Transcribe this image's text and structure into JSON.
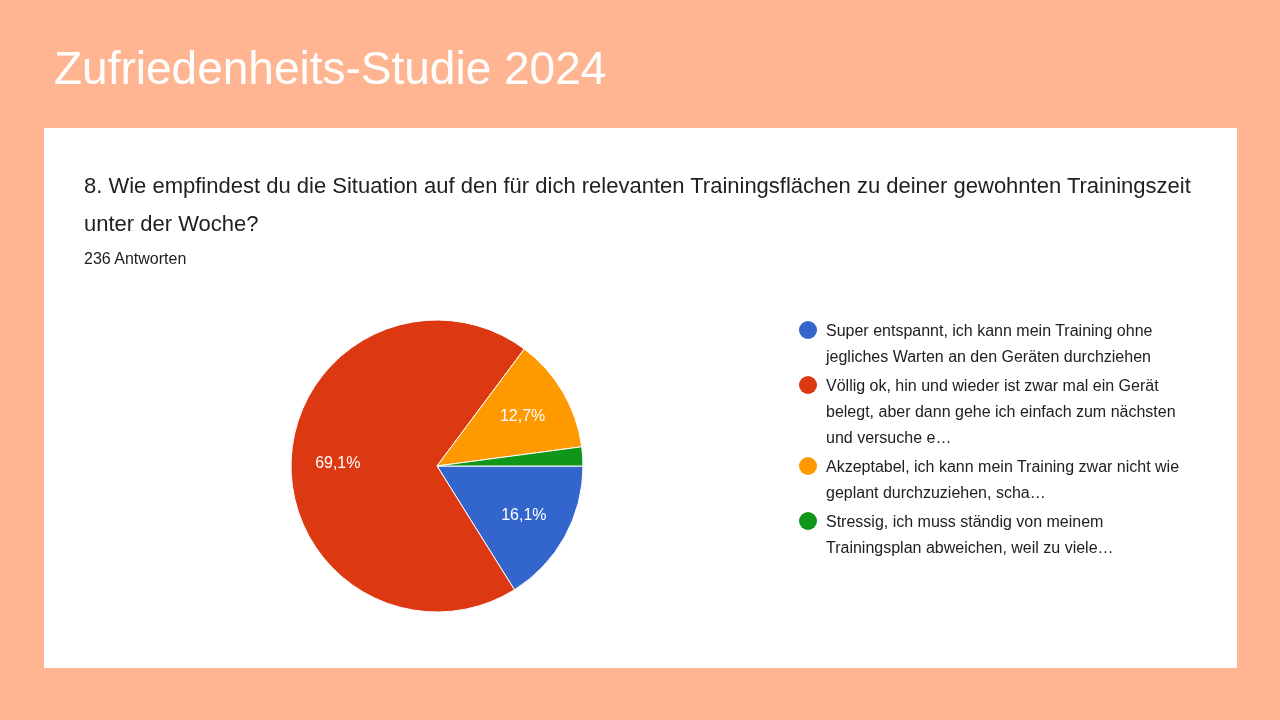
{
  "chart_data": {
    "type": "pie",
    "title": "Zufriedenheits-Studie 2024",
    "subtitle": "8. Wie empfindest du die Situation auf den für dich relevanten Trainingsflächen zu deiner gewohnten Trainingszeit unter der Woche?",
    "annotations": [
      "236 Antworten"
    ],
    "categories": [
      "Super entspannt, ich kann mein Training ohne jegliches Warten an den Geräten durchziehen",
      "Völlig ok, hin und wieder ist zwar mal ein Gerät belegt, aber dann gehe ich einfach zum nächsten und versuche e…",
      "Akzeptabel, ich kann mein Training zwar nicht wie geplant durchzuziehen, scha…",
      "Stressig, ich muss ständig von meinem Trainingsplan abweichen, weil zu viele…"
    ],
    "values": [
      16.1,
      69.1,
      12.7,
      2.1
    ],
    "colors": [
      "#3366cc",
      "#dc3912",
      "#ff9900",
      "#109618"
    ],
    "value_labels": [
      "16,1%",
      "69,1%",
      "12,7%",
      null
    ],
    "legend": "right"
  }
}
